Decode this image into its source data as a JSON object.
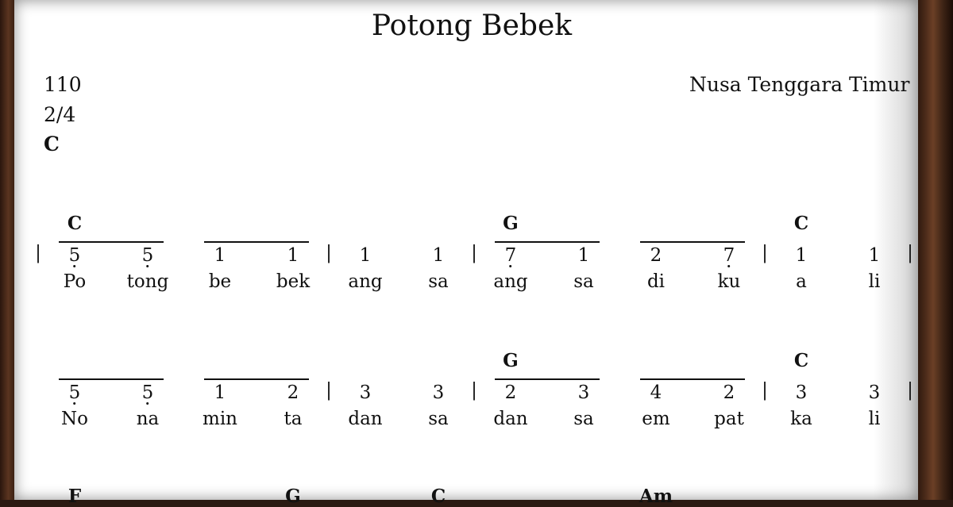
{
  "title": "Potong Bebek",
  "tempo": "110",
  "time_signature": "2/4",
  "key": "C",
  "region": "Nusa Tenggara Timur",
  "rows": [
    {
      "chords": [
        {
          "label": "C",
          "pos": 0
        },
        {
          "label": "G",
          "pos": 6
        },
        {
          "label": "C",
          "pos": 10
        }
      ],
      "notes": [
        "5",
        "5",
        "1",
        "1",
        "1",
        "1",
        "7",
        "1",
        "2",
        "7",
        "1",
        "1"
      ],
      "dots": [
        1,
        1,
        0,
        0,
        0,
        0,
        1,
        0,
        0,
        1,
        0,
        0
      ],
      "lyrics": [
        "Po",
        "tong",
        "be",
        "bek",
        "ang",
        "sa",
        "ang",
        "sa",
        "di",
        "ku",
        "a",
        "li"
      ],
      "beams": [
        [
          0,
          1
        ],
        [
          2,
          3
        ],
        [
          6,
          7
        ],
        [
          8,
          9
        ]
      ],
      "bars": [
        0,
        4,
        6,
        10,
        12
      ]
    },
    {
      "chords": [
        {
          "label": "G",
          "pos": 6
        },
        {
          "label": "C",
          "pos": 10
        }
      ],
      "notes": [
        "5",
        "5",
        "1",
        "2",
        "3",
        "3",
        "2",
        "3",
        "4",
        "2",
        "3",
        "3"
      ],
      "dots": [
        1,
        1,
        0,
        0,
        0,
        0,
        0,
        0,
        0,
        0,
        0,
        0
      ],
      "lyrics": [
        "No",
        "na",
        "min",
        "ta",
        "dan",
        "sa",
        "dan",
        "sa",
        "em",
        "pat",
        "ka",
        "li"
      ],
      "beams": [
        [
          0,
          1
        ],
        [
          2,
          3
        ],
        [
          6,
          7
        ],
        [
          8,
          9
        ]
      ],
      "bars": [
        4,
        6,
        10,
        12
      ]
    },
    {
      "chords": [
        {
          "label": "F",
          "pos": 0
        },
        {
          "label": "G",
          "pos": 3
        },
        {
          "label": "C",
          "pos": 5
        },
        {
          "label": "Am",
          "pos": 8
        }
      ]
    }
  ]
}
